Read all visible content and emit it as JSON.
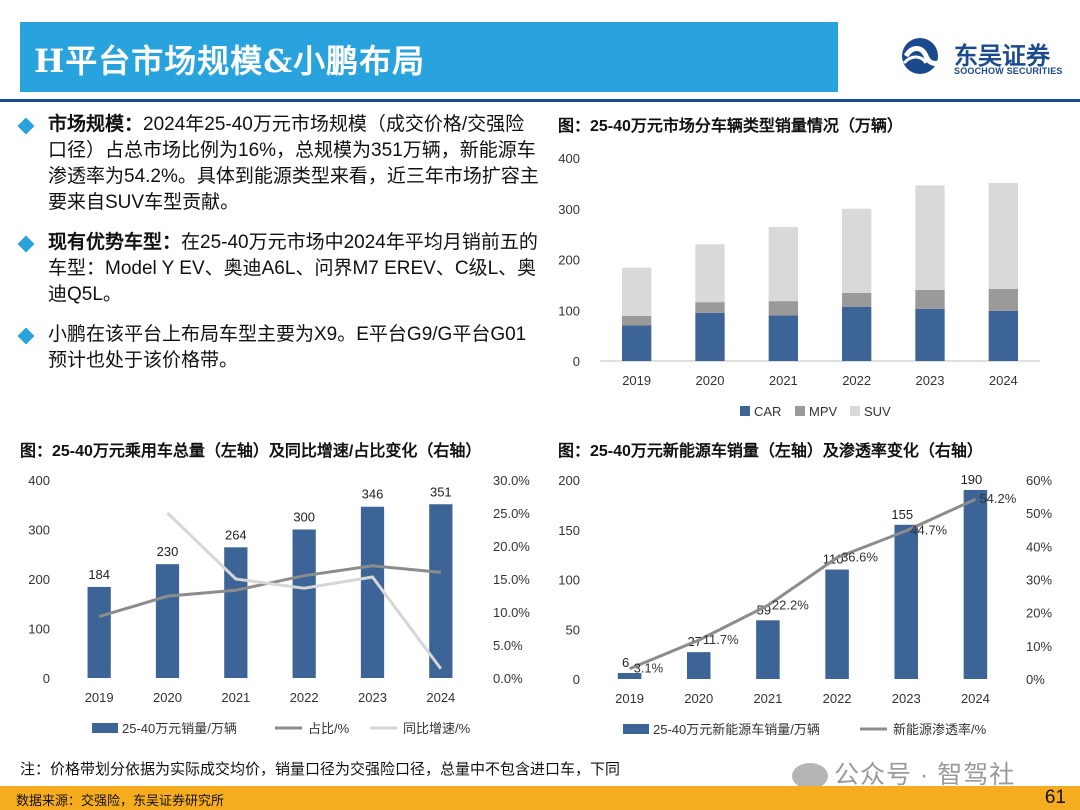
{
  "header": {
    "title": "H平台市场规模&小鹏布局"
  },
  "logo": {
    "name_cn": "东吴证券",
    "name_en": "SOOCHOW SECURITIES",
    "icon": "soochow-logo-icon"
  },
  "bullets": [
    {
      "bold": "市场规模：",
      "text": "2024年25-40万元市场规模（成交价格/交强险口径）占总市场比例为16%，总规模为351万辆，新能源车渗透率为54.2%。具体到能源类型来看，近三年市场扩容主要来自SUV车型贡献。"
    },
    {
      "bold": "现有优势车型：",
      "text": "在25-40万元市场中2024年平均月销前五的车型：Model Y EV、奥迪A6L、问界M7 EREV、C级L、奥迪Q5L。"
    },
    {
      "bold": "",
      "text": "小鹏在该平台上布局车型主要为X9。E平台G9/G平台G01预计也处于该价格带。"
    }
  ],
  "charts": {
    "c1_caption": "图：25-40万元市场分车辆类型销量情况（万辆）",
    "c2_caption": "图：25-40万元乘用车总量（左轴）及同比增速/占比变化（右轴）",
    "c3_caption": "图：25-40万元新能源车销量（左轴）及渗透率变化（右轴）"
  },
  "colors": {
    "bar": "#3c6497",
    "mpv": "#9a9a9a",
    "suv": "#d9d9d9",
    "share_line": "#8c8c8c",
    "yoy_line": "#d6d6d6",
    "accent": "#29a3dd",
    "footer": "#f5ad1f"
  },
  "chart_data": [
    {
      "type": "bar",
      "stacked": true,
      "title": "25-40万元市场分车辆类型销量情况（万辆）",
      "categories": [
        "2019",
        "2020",
        "2021",
        "2022",
        "2023",
        "2024"
      ],
      "series": [
        {
          "name": "CAR",
          "values": [
            70,
            95,
            90,
            107,
            103,
            99
          ]
        },
        {
          "name": "MPV",
          "values": [
            19,
            21,
            28,
            27,
            37,
            43
          ]
        },
        {
          "name": "SUV",
          "values": [
            95,
            114,
            146,
            166,
            206,
            209
          ]
        }
      ],
      "ylim": [
        0,
        400
      ],
      "yticks": [
        "0",
        "100",
        "200",
        "300",
        "400"
      ],
      "legend": "bottom"
    },
    {
      "type": "bar",
      "title": "25-40万元乘用车总量（左轴）及同比增速/占比变化（右轴）",
      "categories": [
        "2019",
        "2020",
        "2021",
        "2022",
        "2023",
        "2024"
      ],
      "series": [
        {
          "name": "25-40万元销量/万辆",
          "type": "bar",
          "axis": "left",
          "values": [
            184,
            230,
            264,
            300,
            346,
            351
          ],
          "labels": [
            "184",
            "230",
            "264",
            "300",
            "346",
            "351"
          ]
        },
        {
          "name": "占比/%",
          "type": "line",
          "axis": "right",
          "values": [
            9.3,
            12.4,
            13.3,
            15.5,
            17.0,
            16.0
          ]
        },
        {
          "name": "同比增速/%",
          "type": "line",
          "axis": "right",
          "values": [
            null,
            25.0,
            15.0,
            13.6,
            15.3,
            1.4
          ]
        }
      ],
      "ylim": [
        0,
        400
      ],
      "yticks": [
        "0",
        "100",
        "200",
        "300",
        "400"
      ],
      "y2lim": [
        0,
        30
      ],
      "y2ticks": [
        "0.0%",
        "5.0%",
        "10.0%",
        "15.0%",
        "20.0%",
        "25.0%",
        "30.0%"
      ],
      "legend": "bottom"
    },
    {
      "type": "bar",
      "title": "25-40万元新能源车销量（左轴）及渗透率变化（右轴）",
      "categories": [
        "2019",
        "2020",
        "2021",
        "2022",
        "2023",
        "2024"
      ],
      "series": [
        {
          "name": "25-40万元新能源车销量/万辆",
          "type": "bar",
          "axis": "left",
          "values": [
            6,
            27,
            59,
            110,
            155,
            190
          ],
          "labels": [
            "6",
            "27",
            "59",
            "110",
            "155",
            "190"
          ]
        },
        {
          "name": "新能源渗透率/%",
          "type": "line",
          "axis": "right",
          "values": [
            3.1,
            11.7,
            22.2,
            36.6,
            44.7,
            54.2
          ],
          "labels": [
            "3.1%",
            "11.7%",
            "22.2%",
            "36.6%",
            "44.7%",
            "54.2%"
          ]
        }
      ],
      "ylim": [
        0,
        200
      ],
      "yticks": [
        "0",
        "50",
        "100",
        "150",
        "200"
      ],
      "y2lim": [
        0,
        60
      ],
      "y2ticks": [
        "0%",
        "10%",
        "20%",
        "30%",
        "40%",
        "50%",
        "60%"
      ],
      "legend": "bottom"
    }
  ],
  "note": "注：价格带划分依据为实际成交均价，销量口径为交强险口径，总量中不包含进口车，下同",
  "watermark": {
    "text": "公众号 · 智驾社",
    "icon": "wechat-icon"
  },
  "footer": {
    "source": "数据来源：交强险，东吴证券研究所",
    "page": "61"
  }
}
